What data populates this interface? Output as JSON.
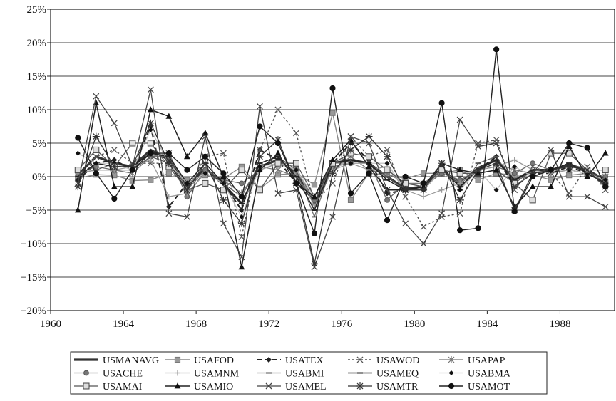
{
  "chart_data": {
    "type": "line",
    "title": "",
    "xlabel": "",
    "ylabel": "",
    "xlim": [
      1960,
      1991
    ],
    "ylim": [
      -20,
      25
    ],
    "x_ticks": [
      1960,
      1964,
      1968,
      1972,
      1976,
      1980,
      1984,
      1988
    ],
    "x_tick_labels": [
      "1960",
      "1964",
      "1968",
      "1972",
      "1976",
      "1980",
      "1984",
      "1988"
    ],
    "y_ticks": [
      -20,
      -15,
      -10,
      -5,
      0,
      5,
      10,
      15,
      20,
      25
    ],
    "y_tick_labels": [
      "−20%",
      "−15%",
      "−10%",
      "−5%",
      "0%",
      "5%",
      "10%",
      "15%",
      "20%",
      "25%"
    ],
    "grid": "horizontal",
    "legend_position": "bottom",
    "x": [
      1961.5,
      1962.5,
      1963.5,
      1964.5,
      1965.5,
      1966.5,
      1967.5,
      1968.5,
      1969.5,
      1970.5,
      1971.5,
      1972.5,
      1973.5,
      1974.5,
      1975.5,
      1976.5,
      1977.5,
      1978.5,
      1979.5,
      1980.5,
      1981.5,
      1982.5,
      1983.5,
      1984.5,
      1985.5,
      1986.5,
      1987.5,
      1988.5,
      1989.5,
      1990.5
    ],
    "series": [
      {
        "name": "USMANAVG",
        "color": "#333333",
        "dash": "",
        "width": 3.2,
        "marker": "",
        "values": [
          0.3,
          3,
          2,
          1.5,
          4,
          2.5,
          -1.5,
          1.3,
          -1.2,
          -4,
          1.5,
          2.5,
          0.5,
          -4,
          2,
          2.5,
          2,
          0,
          -1.8,
          -1.5,
          1,
          -1,
          1.3,
          2.5,
          -0.5,
          1,
          1,
          1.8,
          1,
          -0.5
        ]
      },
      {
        "name": "USAFOD",
        "color": "#888888",
        "dash": "",
        "width": 1.4,
        "marker": "square-gray",
        "values": [
          -0.2,
          0.3,
          0.2,
          -0.6,
          -0.5,
          0.5,
          -0.5,
          0.2,
          -0.3,
          1.5,
          -1.8,
          0.3,
          0.5,
          -1.2,
          9.5,
          -3.5,
          0.5,
          0.3,
          -0.3,
          0.5,
          0.5,
          1,
          -0.5,
          0.5,
          0.2,
          0.3,
          -0.5,
          0.2,
          0.5,
          -1
        ]
      },
      {
        "name": "USATEX",
        "color": "#222222",
        "dash": "7,4",
        "width": 2,
        "marker": "diamond-open",
        "values": [
          -0.5,
          2,
          2.5,
          1,
          7.5,
          -4.5,
          -1,
          0.5,
          -1,
          -5,
          4,
          2.5,
          -1,
          -3.5,
          2,
          5,
          2.5,
          -2.5,
          -2,
          -1.5,
          1.5,
          -1.5,
          1,
          3,
          -1.5,
          0.5,
          0.5,
          1.5,
          0.5,
          -1
        ]
      },
      {
        "name": "USAWOD",
        "color": "#555555",
        "dash": "3,3",
        "width": 1.4,
        "marker": "x",
        "values": [
          -1,
          3,
          4,
          2,
          2,
          2,
          -2,
          3,
          3.5,
          -9,
          4,
          10,
          6.5,
          -4,
          -1,
          6,
          3,
          4,
          -3,
          -7.5,
          -6,
          -5.5,
          5,
          5.5,
          -2,
          1.5,
          0.5,
          -2.5,
          1.5,
          -2
        ]
      },
      {
        "name": "USAPAP",
        "color": "#777777",
        "dash": "",
        "width": 1.3,
        "marker": "star",
        "values": [
          0.5,
          1,
          1,
          0.5,
          3,
          3.5,
          -2,
          1,
          -0.5,
          -2.5,
          1.5,
          1,
          0,
          -3.5,
          1,
          3,
          1,
          0.5,
          -1,
          -1,
          1,
          -1,
          1,
          2,
          1,
          0.5,
          1,
          1,
          0.5,
          0
        ]
      },
      {
        "name": "USACHE",
        "color": "#666666",
        "dash": "",
        "width": 1.3,
        "marker": "circle-gray",
        "values": [
          0.5,
          1.5,
          1,
          1,
          3,
          3,
          -3,
          1,
          -0.5,
          -1,
          1,
          2,
          1,
          -3.5,
          1.5,
          2,
          2,
          -3.5,
          -1,
          -1.5,
          0.5,
          -0.5,
          1,
          1.5,
          0.5,
          2,
          1,
          1,
          0.5,
          0
        ]
      },
      {
        "name": "USAMNM",
        "color": "#999999",
        "dash": "",
        "width": 1.3,
        "marker": "plus",
        "values": [
          0.5,
          1,
          1,
          1.5,
          2.5,
          -3,
          -2.5,
          0.5,
          -1,
          -4,
          1,
          2,
          1.5,
          -4.5,
          1,
          2,
          1,
          1.5,
          -2,
          -3,
          -2,
          -1,
          1,
          1.5,
          2.5,
          1,
          0.5,
          1,
          0.5,
          -0.5
        ]
      },
      {
        "name": "USABMI",
        "color": "#555555",
        "dash": "",
        "width": 1.1,
        "marker": "dash",
        "values": [
          1,
          1,
          2,
          1,
          3,
          2,
          -2,
          2,
          -1,
          -3,
          2,
          3,
          1,
          -6,
          2,
          2,
          2,
          0,
          -2,
          -2,
          1,
          -2,
          2,
          3,
          -1,
          1,
          1,
          2,
          1,
          -1
        ]
      },
      {
        "name": "USAMEQ",
        "color": "#222222",
        "dash": "",
        "width": 1.5,
        "marker": "dash",
        "values": [
          0,
          2,
          1.5,
          1.5,
          3.5,
          3,
          -1,
          2,
          -1,
          -4,
          2,
          3,
          0,
          -5,
          2,
          2.5,
          2,
          -0.5,
          -2,
          -2,
          1,
          -1.5,
          1,
          2.5,
          -0.5,
          1,
          1,
          2,
          0.5,
          -1
        ]
      },
      {
        "name": "USABMA",
        "color": "#bbbbbb",
        "dash": "",
        "width": 1.2,
        "marker": "diamond-small",
        "values": [
          3.5,
          2,
          2,
          1,
          7,
          2,
          -1,
          0.5,
          -1,
          -6,
          1.5,
          2,
          1,
          -3,
          2,
          2,
          2,
          2,
          -2,
          -2,
          1,
          -2,
          1,
          -2,
          1.5,
          0,
          1,
          1,
          0.5,
          -0.5
        ]
      },
      {
        "name": "USAMAI",
        "color": "#555555",
        "dash": "",
        "width": 1.3,
        "marker": "square-open",
        "values": [
          1,
          4,
          1.5,
          5,
          5,
          1.5,
          -2,
          -1,
          -2,
          1,
          -2,
          2,
          2,
          -3,
          2,
          3.5,
          3,
          1,
          -1,
          -1.5,
          1,
          0.5,
          0.5,
          1,
          -1,
          -3.5,
          3.5,
          3.5,
          1,
          1
        ]
      },
      {
        "name": "USAMIO",
        "color": "#222222",
        "dash": "",
        "width": 1.5,
        "marker": "triangle",
        "values": [
          -5,
          11,
          -1.5,
          -1.5,
          10,
          9,
          3,
          6.5,
          0,
          -13.5,
          1,
          3.5,
          -1,
          -3,
          2.5,
          5.5,
          1.5,
          -2,
          -2,
          -1.5,
          2,
          1,
          0.5,
          1,
          -4.5,
          -1.5,
          -1.5,
          4.5,
          0,
          3.5
        ]
      },
      {
        "name": "USAMEL",
        "color": "#444444",
        "dash": "",
        "width": 1.3,
        "marker": "x",
        "values": [
          -1,
          12,
          8,
          1.5,
          13,
          -5.5,
          -6,
          6,
          -7,
          -12,
          10.5,
          -2.5,
          -2,
          -13.5,
          -6,
          6,
          5,
          -2,
          -7,
          -10,
          -5.5,
          8.5,
          4.5,
          5,
          -1.5,
          0.5,
          4,
          -3,
          -3,
          -4.5
        ]
      },
      {
        "name": "USAMTR",
        "color": "#333333",
        "dash": "",
        "width": 1.3,
        "marker": "asterisk",
        "values": [
          -1.5,
          6,
          1.5,
          1.5,
          8,
          2,
          -2,
          2,
          -3.5,
          -7,
          3,
          5.5,
          -1,
          -13,
          0.5,
          4,
          6,
          3,
          -2,
          -2,
          2,
          -3.5,
          1,
          2,
          -5,
          0.5,
          1,
          1.5,
          1,
          -1.5
        ]
      },
      {
        "name": "USAMOT",
        "color": "#222222",
        "dash": "",
        "width": 1.4,
        "marker": "circle",
        "values": [
          5.8,
          0.5,
          -3.3,
          1,
          3.5,
          3.5,
          1,
          3,
          0.5,
          -3,
          7.5,
          5,
          -1,
          -8.5,
          13.2,
          -2.5,
          0.5,
          -6.5,
          0,
          -1,
          11,
          -8,
          -7.7,
          19,
          -5.2,
          0,
          1,
          5,
          4.3,
          -1.5
        ]
      }
    ]
  }
}
